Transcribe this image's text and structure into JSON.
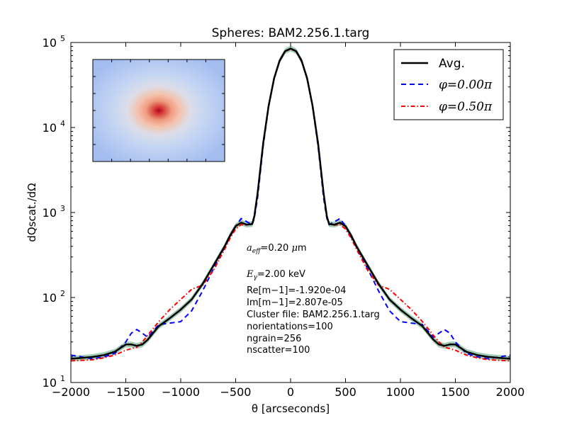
{
  "chart_data": {
    "type": "line",
    "title": "Spheres: BAM2.256.1.targ",
    "xlabel": "θ [arcseconds]",
    "ylabel": "dQscat./dΩ",
    "xlim": [
      -2000,
      2000
    ],
    "ylim": [
      10,
      100000
    ],
    "yscale": "log",
    "x_ticks": [
      -2000,
      -1500,
      -1000,
      -500,
      0,
      500,
      1000,
      1500,
      2000
    ],
    "x_tick_labels": [
      "−2000",
      "−1500",
      "−1000",
      "−500",
      "0",
      "500",
      "1000",
      "1500",
      "2000"
    ],
    "y_ticks": [
      10,
      100,
      1000,
      10000,
      100000
    ],
    "y_tick_labels": [
      {
        "base": "10",
        "exp": "1"
      },
      {
        "base": "10",
        "exp": "2"
      },
      {
        "base": "10",
        "exp": "3"
      },
      {
        "base": "10",
        "exp": "4"
      },
      {
        "base": "10",
        "exp": "5"
      }
    ],
    "legend_position": "top-right",
    "series": [
      {
        "name": "Avg.",
        "style": "solid",
        "color": "#000000",
        "x": [
          0,
          50,
          100,
          150,
          200,
          250,
          300,
          330,
          350,
          400,
          450,
          500,
          550,
          600,
          700,
          800,
          900,
          1000,
          1100,
          1200,
          1300,
          1350,
          1400,
          1450,
          1500,
          1600,
          1700,
          1800,
          1900,
          2000
        ],
        "y": [
          85000,
          79000,
          61000,
          38000,
          18000,
          6500,
          1700,
          900,
          730,
          720,
          760,
          690,
          540,
          400,
          240,
          145,
          95,
          72,
          57,
          46,
          32,
          28,
          27,
          28,
          28,
          23,
          21,
          20,
          19.5,
          19
        ]
      },
      {
        "name": "φ=0.00π",
        "style": "dashed",
        "color": "#0000ff",
        "x": [
          0,
          50,
          100,
          150,
          200,
          250,
          300,
          330,
          350,
          400,
          450,
          500,
          550,
          600,
          700,
          800,
          900,
          1000,
          1100,
          1200,
          1300,
          1350,
          1400,
          1450,
          1500,
          1600,
          1700,
          1800,
          1900,
          2000
        ],
        "y": [
          85000,
          79500,
          62000,
          38000,
          17500,
          6000,
          1500,
          850,
          720,
          780,
          850,
          690,
          520,
          390,
          220,
          120,
          70,
          52,
          50,
          48,
          34,
          38,
          42,
          38,
          30,
          22,
          20,
          19,
          20,
          21
        ]
      },
      {
        "name": "φ=0.50π",
        "style": "dashdot",
        "color": "#ff0000",
        "x": [
          0,
          50,
          100,
          150,
          200,
          250,
          300,
          330,
          350,
          400,
          450,
          500,
          550,
          600,
          700,
          800,
          900,
          1000,
          1100,
          1200,
          1300,
          1350,
          1400,
          1450,
          1500,
          1600,
          1700,
          1800,
          1900,
          2000
        ],
        "y": [
          84000,
          78000,
          60000,
          37000,
          17800,
          6300,
          1650,
          880,
          740,
          710,
          720,
          640,
          500,
          370,
          210,
          140,
          125,
          95,
          72,
          52,
          36,
          30,
          26,
          25,
          24,
          21,
          19.5,
          18.5,
          18.2,
          18
        ]
      }
    ],
    "annotations": [
      {
        "prefix": "a",
        "sub": "eff",
        "mid": "=0.20 ",
        "it": "μ",
        "suffix": "m"
      },
      {
        "prefix": "E",
        "sub": "γ",
        "mid": "=2.00 ",
        "it": "",
        "suffix": "keV"
      }
    ],
    "annotation_lines": [
      "Re[m−1]=-1.920e-04",
      "Im[m−1]=2.807e-05",
      "Cluster file: BAM2.256.1.targ",
      "norientations=100",
      "ngrain=256",
      "nscatter=100"
    ],
    "inset": {
      "type": "heatmap",
      "colormap": "coolwarm",
      "description_colors": [
        "#a9c2f2",
        "#bcd2f7",
        "#f2c6b0",
        "#e8826a",
        "#b40426"
      ]
    }
  }
}
